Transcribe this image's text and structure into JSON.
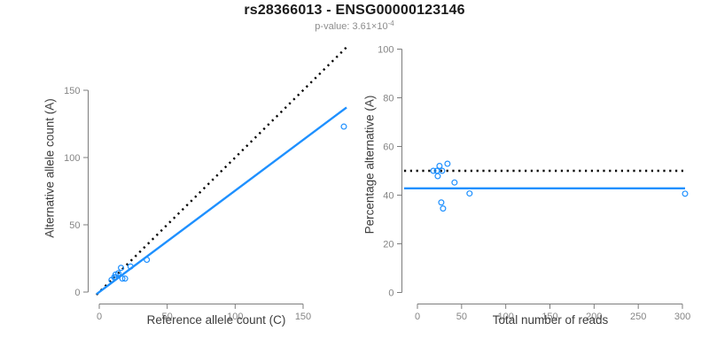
{
  "header": {
    "title": "rs28366013 - ENSG00000123146",
    "subtitle_prefix": "p-value: 3.61×10",
    "subtitle_exponent": "-4"
  },
  "colors": {
    "accent_blue": "#1E90FF",
    "line_black": "#000000",
    "axis_gray": "#7d7d7d",
    "tick_label_gray": "#858585",
    "axis_label_dark": "#3d3d3d",
    "subtitle_gray": "#8c8c8c"
  },
  "chart_data": [
    {
      "id": "allele-counts",
      "type": "scatter",
      "xlabel": "Reference allele count (C)",
      "ylabel": "Alternative allele count (A)",
      "xticks": [
        0,
        50,
        100,
        150
      ],
      "yticks": [
        0,
        50,
        100,
        150
      ],
      "xlim": [
        0,
        183
      ],
      "ylim": [
        0,
        183
      ],
      "points": [
        [
          16,
          18
        ],
        [
          9,
          9
        ],
        [
          11,
          11
        ],
        [
          12,
          13
        ],
        [
          14,
          14
        ],
        [
          12,
          11
        ],
        [
          23,
          19
        ],
        [
          35,
          24
        ],
        [
          17,
          10
        ],
        [
          19,
          10
        ],
        [
          180,
          123
        ]
      ],
      "lines": [
        {
          "name": "identity-line",
          "style": "dotted",
          "color": "#000000",
          "slope": 1,
          "intercept": 0
        },
        {
          "name": "fit-line",
          "style": "solid",
          "color": "#1E90FF",
          "slope": 0.754,
          "intercept": 0
        }
      ]
    },
    {
      "id": "percentage-vs-reads",
      "type": "scatter",
      "xlabel": "Total number of reads",
      "ylabel": "Percentage alternative (A)",
      "xticks": [
        0,
        50,
        100,
        150,
        200,
        250,
        300
      ],
      "yticks": [
        0,
        20,
        40,
        60,
        80,
        100
      ],
      "xlim": [
        0,
        305
      ],
      "ylim": [
        0,
        100
      ],
      "points": [
        [
          34,
          52.9
        ],
        [
          18,
          50
        ],
        [
          22,
          50
        ],
        [
          25,
          52
        ],
        [
          28,
          50
        ],
        [
          23,
          47.8
        ],
        [
          42,
          45.2
        ],
        [
          59,
          40.7
        ],
        [
          27,
          37
        ],
        [
          29,
          34.5
        ],
        [
          303,
          40.6
        ]
      ],
      "lines": [
        {
          "name": "null-line",
          "style": "dotted",
          "color": "#000000",
          "y": 50
        },
        {
          "name": "fit-line",
          "style": "solid",
          "color": "#1E90FF",
          "y": 42.8
        }
      ]
    }
  ]
}
